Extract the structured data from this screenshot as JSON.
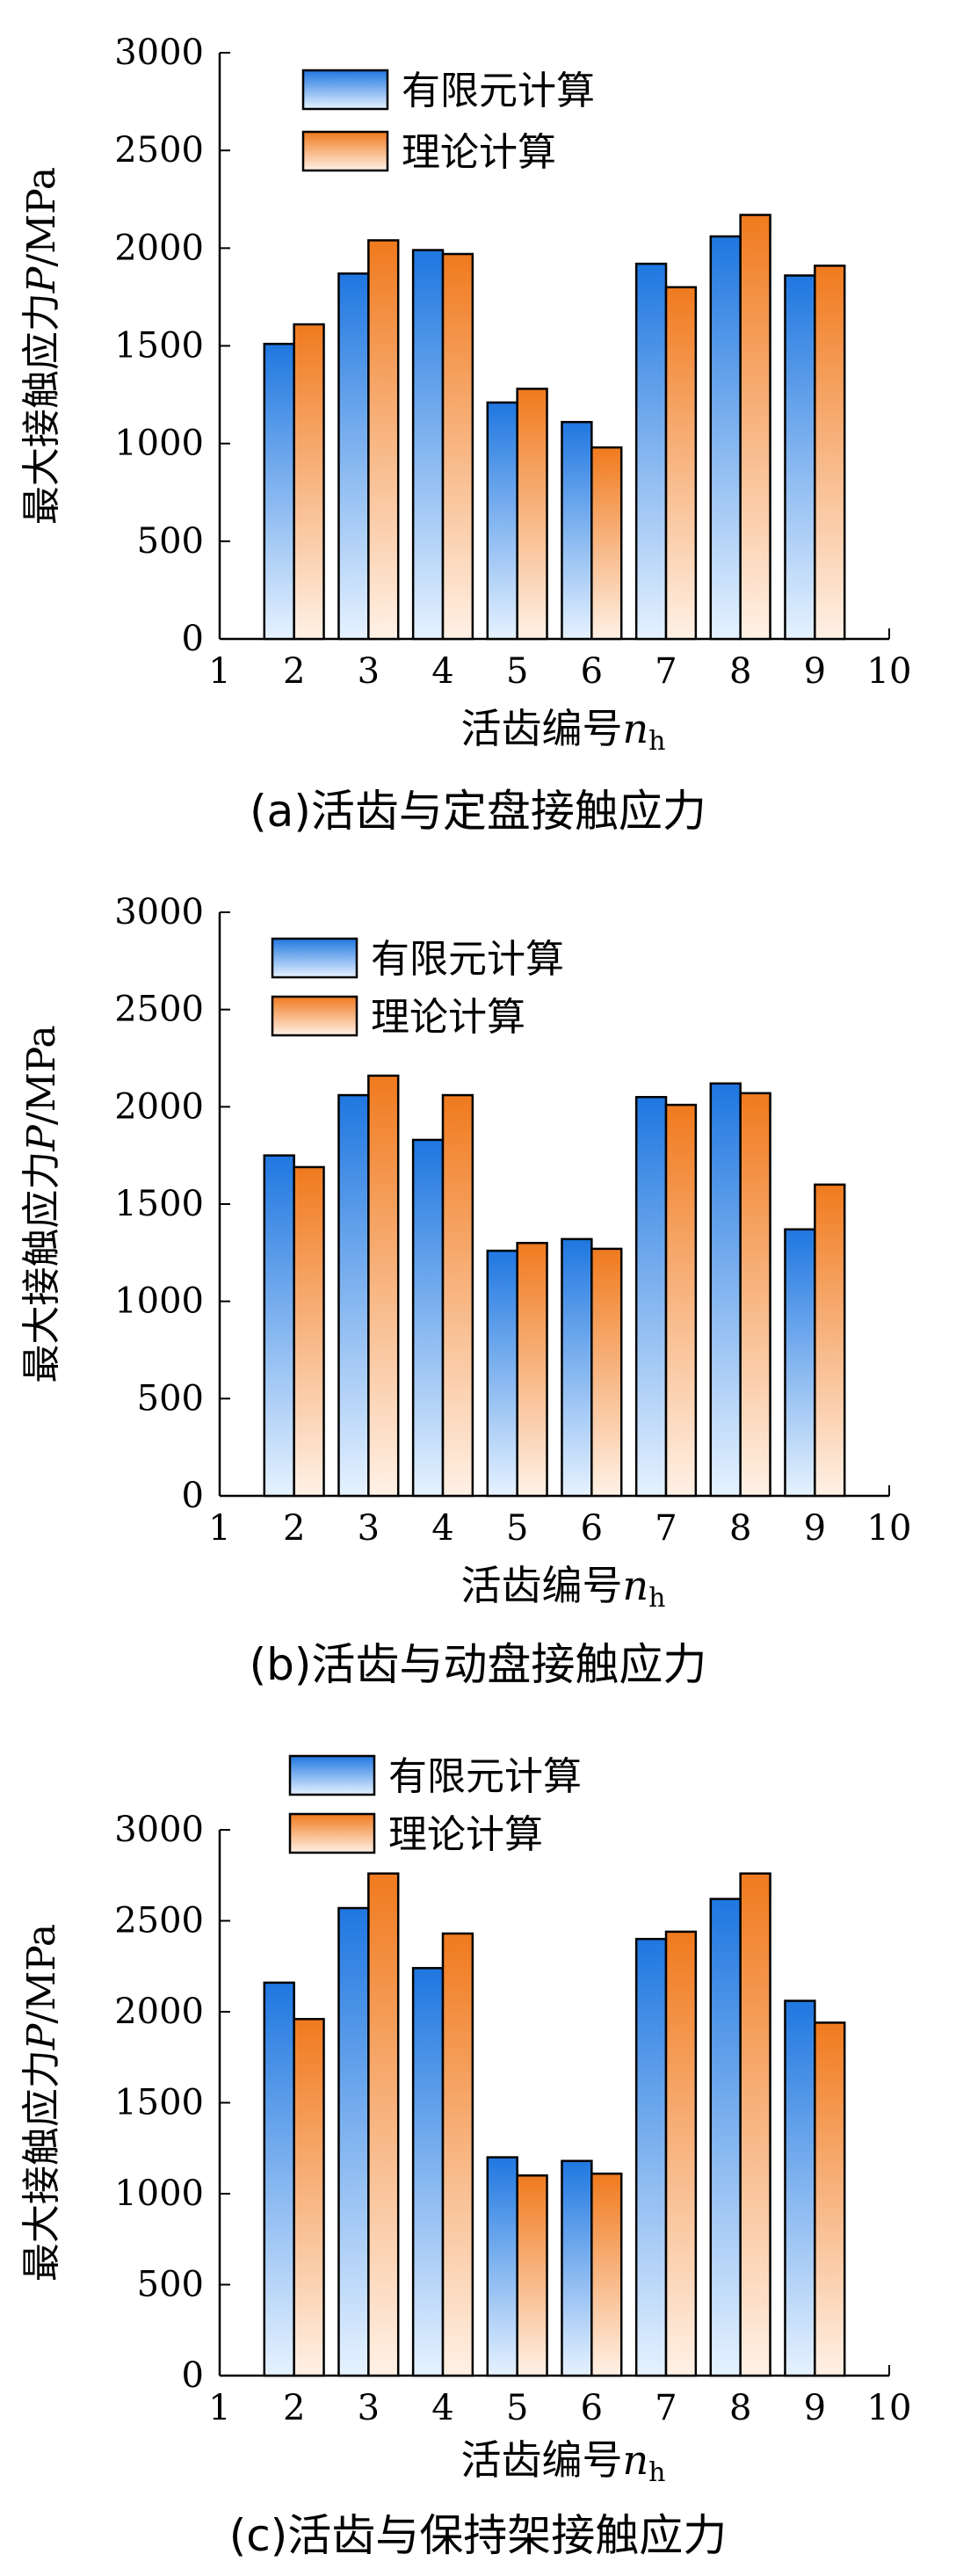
{
  "figure": {
    "legend_fe": "有限元计算",
    "legend_th": "理论计算",
    "colors": {
      "fe_top": "#1f77e0",
      "fe_bottom": "#e6f2ff",
      "th_top": "#f07a1e",
      "th_bottom": "#fff1e6",
      "stroke": "#000000"
    }
  },
  "chart_data": [
    {
      "type": "bar",
      "title": "",
      "caption": "(a)活齿与定盘接触应力",
      "ylabel_prefix": "最大接触应力",
      "ylabel_var": "P",
      "ylabel_unit": "/MPa",
      "xlabel_prefix": "活齿编号",
      "xlabel_var": "n",
      "xlabel_sub": "h",
      "xlim": [
        1,
        10
      ],
      "ylim": [
        0,
        3000
      ],
      "xticks": [
        "1",
        "2",
        "3",
        "4",
        "5",
        "6",
        "7",
        "8",
        "9",
        "10"
      ],
      "yticks": [
        "0",
        "500",
        "1000",
        "1500",
        "2000",
        "2500",
        "3000"
      ],
      "categories": [
        "2",
        "3",
        "4",
        "5",
        "6",
        "7",
        "8",
        "9"
      ],
      "series": [
        {
          "name": "有限元计算",
          "values": [
            1510,
            1870,
            1990,
            1210,
            1110,
            1920,
            2060,
            1860
          ]
        },
        {
          "name": "理论计算",
          "values": [
            1610,
            2040,
            1970,
            1280,
            980,
            1800,
            2170,
            1910
          ]
        }
      ],
      "legend": "top-left"
    },
    {
      "type": "bar",
      "title": "",
      "caption": "(b)活齿与动盘接触应力",
      "ylabel_prefix": "最大接触应力",
      "ylabel_var": "P",
      "ylabel_unit": "/MPa",
      "xlabel_prefix": "活齿编号",
      "xlabel_var": "n",
      "xlabel_sub": "h",
      "xlim": [
        1,
        10
      ],
      "ylim": [
        0,
        3000
      ],
      "xticks": [
        "1",
        "2",
        "3",
        "4",
        "5",
        "6",
        "7",
        "8",
        "9",
        "10"
      ],
      "yticks": [
        "0",
        "500",
        "1000",
        "1500",
        "2000",
        "2500",
        "3000"
      ],
      "categories": [
        "2",
        "3",
        "4",
        "5",
        "6",
        "7",
        "8",
        "9"
      ],
      "series": [
        {
          "name": "有限元计算",
          "values": [
            1750,
            2060,
            1830,
            1260,
            1320,
            2050,
            2120,
            1370
          ]
        },
        {
          "name": "理论计算",
          "values": [
            1690,
            2160,
            2060,
            1300,
            1270,
            2010,
            2070,
            1600
          ]
        }
      ],
      "legend": "top-left"
    },
    {
      "type": "bar",
      "title": "",
      "caption": "(c)活齿与保持架接触应力",
      "ylabel_prefix": "最大接触应力",
      "ylabel_var": "P",
      "ylabel_unit": "/MPa",
      "xlabel_prefix": "活齿编号",
      "xlabel_var": "n",
      "xlabel_sub": "h",
      "xlim": [
        1,
        10
      ],
      "ylim": [
        0,
        3000
      ],
      "xticks": [
        "1",
        "2",
        "3",
        "4",
        "5",
        "6",
        "7",
        "8",
        "9",
        "10"
      ],
      "yticks": [
        "0",
        "500",
        "1000",
        "1500",
        "2000",
        "2500",
        "3000"
      ],
      "categories": [
        "2",
        "3",
        "4",
        "5",
        "6",
        "7",
        "8",
        "9"
      ],
      "series": [
        {
          "name": "有限元计算",
          "values": [
            2160,
            2570,
            2240,
            1200,
            1180,
            2400,
            2620,
            2060
          ]
        },
        {
          "name": "理论计算",
          "values": [
            1960,
            2760,
            2430,
            1100,
            1110,
            2440,
            2760,
            1940
          ]
        }
      ],
      "legend": "top-left, above axes"
    }
  ]
}
